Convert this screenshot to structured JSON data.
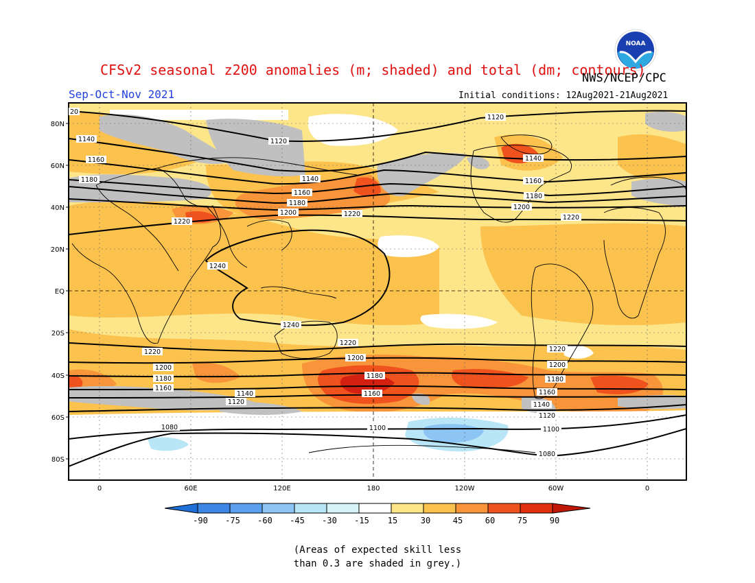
{
  "title": "CFSv2 seasonal z200 anomalies (m; shaded) and total (dm; contours)",
  "agency": "NWS/NCEP/CPC",
  "season": "Sep-Oct-Nov 2021",
  "initial_conditions": "Initial conditions: 12Aug2021-21Aug2021",
  "logo_text": "NOAA",
  "lat_labels": [
    "80N",
    "60N",
    "40N",
    "20N",
    "EQ",
    "20S",
    "40S",
    "60S",
    "80S"
  ],
  "lon_labels": [
    "0",
    "60E",
    "120E",
    "180",
    "120W",
    "60W",
    "0"
  ],
  "colorbar": {
    "labels": [
      "-90",
      "-75",
      "-60",
      "-45",
      "-30",
      "-15",
      "15",
      "30",
      "45",
      "60",
      "75",
      "90"
    ],
    "colors": [
      "#1f6fd8",
      "#3c86e6",
      "#5aa0ee",
      "#8cc4f4",
      "#b8e6f6",
      "#ffffff",
      "#fde58a",
      "#fbc24e",
      "#f8953a",
      "#f0521e",
      "#d42010"
    ]
  },
  "contour_labels": {
    "c1120a": "1120",
    "c1120b": "1120",
    "c1140a": "1140",
    "c1140b": "1140",
    "c1140c": "1140",
    "c1160a": "1160",
    "c1160b": "1160",
    "c1160c": "1160",
    "c1180a": "1180",
    "c1180b": "1180",
    "c1200a": "1200",
    "c1200b": "1200",
    "c1220a": "1220",
    "c1220b": "1220",
    "c1220c": "1220",
    "c1240a": "1240",
    "c1240b": "1240",
    "s1220a": "1220",
    "s1220b": "1220",
    "s1220c": "1220",
    "s1200a": "1200",
    "s1200b": "1200",
    "s1200c": "1200",
    "s1180a": "1180",
    "s1180b": "1180",
    "s1180c": "1180",
    "s1160a": "1160",
    "s1160b": "1160",
    "s1160c": "1160",
    "s1140a": "1140",
    "s1140b": "1140",
    "s1120a": "1120",
    "s1120b": "1120",
    "s1100a": "1100",
    "s1100b": "1100",
    "s1080a": "1080",
    "s1080b": "1080",
    "edge20": "20"
  },
  "footnote": [
    "(Areas of expected skill less",
    "than 0.3 are shaded in grey.)"
  ]
}
